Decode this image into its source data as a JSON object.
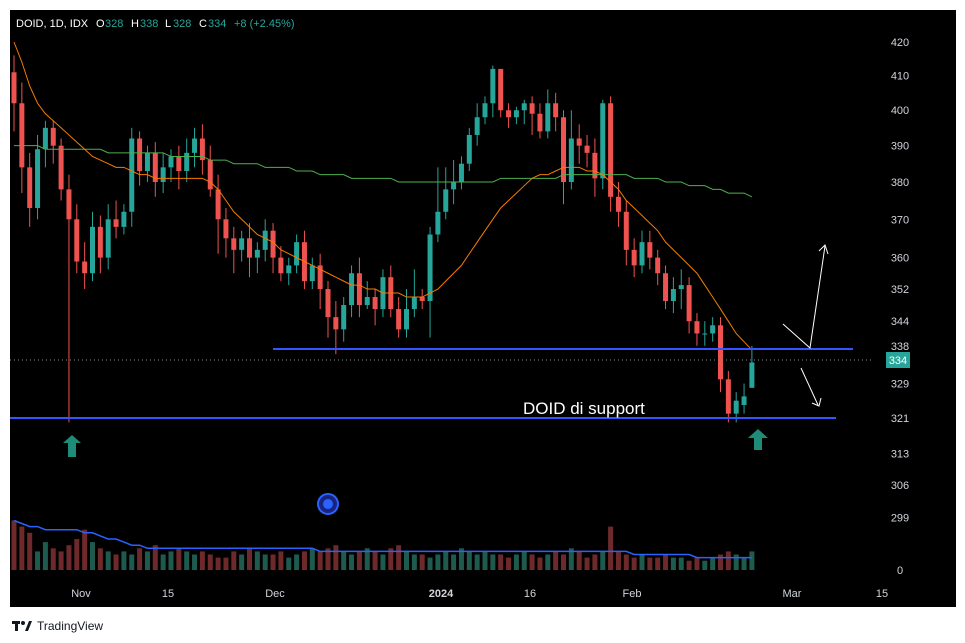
{
  "header": {
    "symbol": "DOID, 1D, IDX",
    "o_label": "O",
    "o_value": "328",
    "h_label": "H",
    "h_value": "338",
    "l_label": "L",
    "l_value": "328",
    "c_label": "C",
    "c_value": "334",
    "change": "+8 (+2.45%)"
  },
  "footer": {
    "brand": "TradingView"
  },
  "colors": {
    "background": "#000000",
    "up": "#26a69a",
    "down": "#ef5350",
    "ma_fast": "#f57c00",
    "ma_slow": "#4caf50",
    "support": "#3355ff",
    "volume_ma": "#2962ff",
    "arrow": "#ffffff",
    "marker": "#1e8c78"
  },
  "icons": {
    "up_marker": "arrow-up-icon",
    "event": "circle-event-icon",
    "logo": "tradingview-logo-icon"
  },
  "chart_data": {
    "type": "candlestick",
    "price_axis": {
      "ticks": [
        420,
        410,
        400,
        390,
        380,
        370,
        360,
        352,
        344,
        338,
        329,
        321,
        313,
        306,
        299,
        0
      ],
      "scale": "log"
    },
    "time_axis": {
      "labels": [
        "Nov",
        "15",
        "Dec",
        "2024",
        "16",
        "Feb",
        "Mar",
        "15"
      ]
    },
    "last_price": 334,
    "annotation": "DOID di support",
    "support_levels": [
      338,
      321
    ],
    "candles": [
      [
        411,
        402,
        416,
        394
      ],
      [
        402,
        384,
        408,
        377
      ],
      [
        384,
        373,
        388,
        368
      ],
      [
        373,
        389,
        393,
        370
      ],
      [
        389,
        395,
        397,
        384
      ],
      [
        395,
        390,
        397,
        385
      ],
      [
        390,
        378,
        392,
        375
      ],
      [
        378,
        370,
        382,
        320
      ],
      [
        370,
        359,
        374,
        356
      ],
      [
        359,
        356,
        364,
        352
      ],
      [
        356,
        368,
        372,
        354
      ],
      [
        368,
        360,
        371,
        356
      ],
      [
        360,
        370,
        374,
        357
      ],
      [
        370,
        368,
        375,
        365
      ],
      [
        368,
        372,
        374,
        366
      ],
      [
        372,
        392,
        395,
        368
      ],
      [
        392,
        383,
        394,
        379
      ],
      [
        383,
        388,
        390,
        380
      ],
      [
        388,
        380,
        391,
        376
      ],
      [
        380,
        384,
        388,
        377
      ],
      [
        384,
        387,
        389,
        380
      ],
      [
        387,
        383,
        390,
        378
      ],
      [
        383,
        388,
        392,
        380
      ],
      [
        388,
        392,
        395,
        384
      ],
      [
        392,
        386,
        396,
        382
      ],
      [
        386,
        378,
        390,
        376
      ],
      [
        378,
        370,
        382,
        361
      ],
      [
        370,
        365,
        373,
        360
      ],
      [
        365,
        362,
        368,
        356
      ],
      [
        362,
        365,
        367,
        359
      ],
      [
        365,
        360,
        369,
        355
      ],
      [
        360,
        362,
        364,
        356
      ],
      [
        362,
        367,
        370,
        359
      ],
      [
        367,
        360,
        369,
        356
      ],
      [
        360,
        356,
        363,
        354
      ],
      [
        356,
        358,
        360,
        353
      ],
      [
        358,
        364,
        366,
        356
      ],
      [
        364,
        354,
        367,
        352
      ],
      [
        354,
        358,
        360,
        352
      ],
      [
        358,
        352,
        361,
        347
      ],
      [
        352,
        345,
        354,
        340
      ],
      [
        345,
        342,
        349,
        336
      ],
      [
        342,
        348,
        350,
        339
      ],
      [
        348,
        356,
        358,
        345
      ],
      [
        356,
        348,
        360,
        345
      ],
      [
        348,
        350,
        354,
        347
      ],
      [
        350,
        347,
        352,
        343
      ],
      [
        347,
        355,
        357,
        345
      ],
      [
        355,
        347,
        358,
        345
      ],
      [
        347,
        342,
        350,
        340
      ],
      [
        342,
        347,
        352,
        340
      ],
      [
        347,
        350,
        357,
        345
      ],
      [
        350,
        349,
        352,
        347
      ],
      [
        349,
        366,
        368,
        340
      ],
      [
        366,
        372,
        384,
        364
      ],
      [
        372,
        378,
        384,
        370
      ],
      [
        378,
        380,
        386,
        374
      ],
      [
        380,
        385,
        387,
        378
      ],
      [
        385,
        393,
        395,
        383
      ],
      [
        393,
        398,
        402,
        390
      ],
      [
        398,
        402,
        404,
        396
      ],
      [
        402,
        412,
        413,
        398
      ],
      [
        412,
        400,
        405,
        398
      ],
      [
        400,
        398,
        402,
        395
      ],
      [
        398,
        400,
        401,
        396
      ],
      [
        400,
        402,
        403,
        396
      ],
      [
        402,
        399,
        404,
        393
      ],
      [
        399,
        394,
        402,
        392
      ],
      [
        394,
        402,
        406,
        392
      ],
      [
        402,
        398,
        405,
        394
      ],
      [
        398,
        380,
        400,
        374
      ],
      [
        380,
        392,
        400,
        378
      ],
      [
        392,
        390,
        396,
        385
      ],
      [
        390,
        388,
        393,
        384
      ],
      [
        388,
        381,
        392,
        376
      ],
      [
        381,
        402,
        403,
        378
      ],
      [
        402,
        376,
        404,
        372
      ],
      [
        376,
        372,
        380,
        368
      ],
      [
        372,
        362,
        375,
        358
      ],
      [
        362,
        358,
        365,
        355
      ],
      [
        358,
        364,
        367,
        356
      ],
      [
        364,
        360,
        367,
        357
      ],
      [
        360,
        356,
        362,
        353
      ],
      [
        356,
        349,
        358,
        347
      ],
      [
        349,
        352,
        355,
        346
      ],
      [
        352,
        353,
        357,
        347
      ],
      [
        353,
        344,
        355,
        341
      ],
      [
        344,
        341,
        346,
        338
      ],
      [
        341,
        341,
        344,
        338
      ],
      [
        341,
        343,
        345,
        339
      ],
      [
        343,
        330,
        345,
        327
      ],
      [
        330,
        322,
        332,
        320
      ],
      [
        322,
        325,
        327,
        320
      ],
      [
        324,
        326,
        329,
        322
      ],
      [
        328,
        334,
        338,
        328
      ]
    ],
    "ma_fast": [
      420,
      414,
      407,
      402,
      399,
      397,
      395,
      393,
      391,
      389,
      387,
      386,
      385,
      384,
      384,
      383,
      382,
      382,
      381,
      381,
      381,
      381,
      381,
      381,
      381,
      380,
      378,
      375,
      372,
      370,
      368,
      366,
      365,
      364,
      362,
      361,
      360,
      359,
      358,
      357,
      356,
      355,
      354,
      353,
      353,
      352,
      352,
      351,
      351,
      351,
      350,
      350,
      350,
      351,
      352,
      354,
      356,
      358,
      361,
      364,
      367,
      370,
      373,
      375,
      377,
      379,
      381,
      382,
      382,
      383,
      384,
      384,
      384,
      383,
      383,
      382,
      380,
      378,
      375,
      373,
      371,
      369,
      367,
      364,
      362,
      360,
      358,
      356,
      353,
      350,
      347,
      344,
      341,
      339,
      337
    ],
    "ma_slow": [
      390,
      390,
      390,
      390,
      389,
      389,
      389,
      389,
      389,
      389,
      389,
      389,
      388,
      388,
      388,
      388,
      388,
      388,
      388,
      388,
      387,
      387,
      387,
      387,
      387,
      386,
      386,
      386,
      385,
      385,
      385,
      385,
      384,
      384,
      384,
      384,
      383,
      383,
      383,
      382,
      382,
      382,
      382,
      381,
      381,
      381,
      381,
      381,
      381,
      380,
      380,
      380,
      380,
      380,
      380,
      380,
      380,
      380,
      380,
      380,
      380,
      380,
      381,
      381,
      381,
      381,
      381,
      381,
      381,
      381,
      382,
      382,
      382,
      382,
      382,
      382,
      382,
      382,
      382,
      381,
      381,
      381,
      381,
      380,
      380,
      380,
      379,
      379,
      379,
      378,
      378,
      377,
      377,
      377,
      376
    ],
    "volume": [
      16,
      14,
      12,
      6,
      9,
      7,
      6,
      8,
      10,
      13,
      9,
      7,
      6,
      5,
      6,
      5,
      7,
      6,
      8,
      5,
      6,
      7,
      6,
      5,
      6,
      5,
      4,
      4,
      6,
      5,
      7,
      6,
      5,
      5,
      6,
      4,
      5,
      6,
      7,
      6,
      7,
      8,
      6,
      5,
      6,
      7,
      6,
      5,
      7,
      8,
      6,
      5,
      5,
      4,
      5,
      6,
      5,
      7,
      6,
      5,
      6,
      5,
      5,
      4,
      5,
      6,
      5,
      4,
      5,
      6,
      5,
      7,
      6,
      4,
      5,
      6,
      14,
      6,
      5,
      4,
      5,
      4,
      4,
      5,
      4,
      4,
      3,
      4,
      3,
      4,
      5,
      6,
      5,
      4,
      6
    ],
    "volume_ma": [
      16,
      15,
      14,
      14,
      13,
      13,
      13,
      13,
      13,
      12,
      12,
      11,
      10,
      10,
      9,
      8,
      8,
      7,
      7,
      7,
      7,
      7,
      7,
      7,
      7,
      7,
      7,
      7,
      7,
      7,
      7,
      7,
      7,
      7,
      7,
      7,
      7,
      7,
      7,
      6,
      6,
      6,
      6,
      6,
      6,
      6,
      6,
      6,
      6,
      6,
      6,
      6,
      6,
      6,
      6,
      6,
      6,
      6,
      6,
      6,
      6,
      6,
      6,
      6,
      6,
      6,
      6,
      6,
      6,
      6,
      6,
      6,
      6,
      6,
      6,
      6,
      6,
      6,
      6,
      5,
      5,
      5,
      5,
      5,
      5,
      5,
      5,
      4,
      4,
      4,
      4,
      4,
      4,
      4,
      4
    ]
  }
}
